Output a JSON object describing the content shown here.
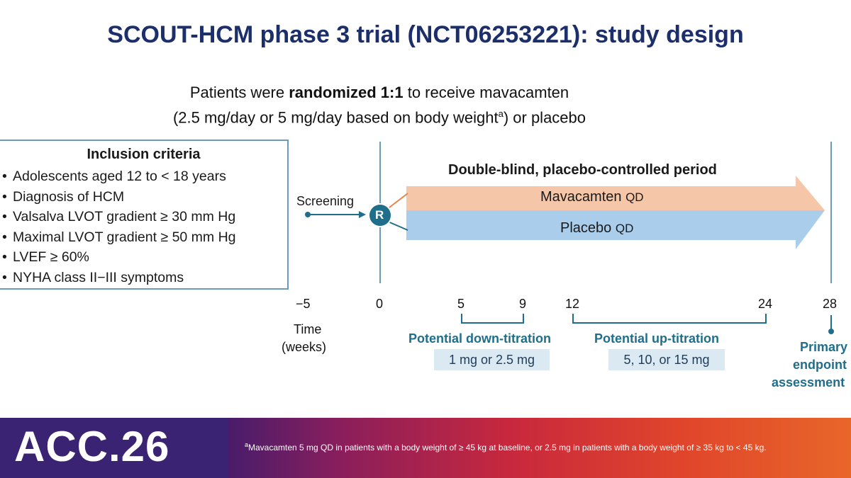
{
  "title": "SCOUT-HCM phase 3 trial (NCT06253221): study design",
  "subtitle": {
    "line1_pre": "Patients were ",
    "line1_bold": "randomized 1:1",
    "line1_post": " to receive mavacamten",
    "line2_pre": "(2.5 mg/day or 5 mg/day based on body weight",
    "line2_sup": "a",
    "line2_post": ") or placebo"
  },
  "inclusion": {
    "title": "Inclusion criteria",
    "items": [
      "Adolescents aged 12 to < 18 years",
      "Diagnosis of HCM",
      "Valsalva LVOT gradient ≥ 30 mm Hg",
      "Maximal LVOT gradient ≥ 50 mm Hg",
      "LVEF ≥ 60%",
      "NYHA class II−III symptoms"
    ]
  },
  "diagram": {
    "screening": "Screening",
    "randomization": "R",
    "period": "Double-blind, placebo-controlled period",
    "arm1": "Mavacamten",
    "arm1_suffix": "QD",
    "arm2": "Placebo",
    "arm2_suffix": "QD",
    "time_label_1": "Time",
    "time_label_2": "(weeks)",
    "ticks": [
      "−5",
      "0",
      "5",
      "9",
      "12",
      "24",
      "28"
    ],
    "down_title": "Potential down-titration",
    "down_dose": "1 mg or 2.5 mg",
    "up_title": "Potential up-titration",
    "up_dose": "5, 10, or 15 mg",
    "endpoint_1": "Primary",
    "endpoint_2": "endpoint",
    "endpoint_3": "assessment",
    "colors": {
      "mavacamten_arm": "#f6c6a8",
      "placebo_arm": "#a9cdea",
      "teal": "#1f6e8c",
      "title": "#1c2f6b"
    }
  },
  "footer": {
    "logo": "ACC.26",
    "note_sup": "a",
    "note": "Mavacamten 5 mg QD in patients with a body weight of ≥ 45 kg at baseline, or 2.5 mg in patients with a body weight of ≥ 35 kg to < 45 kg."
  }
}
